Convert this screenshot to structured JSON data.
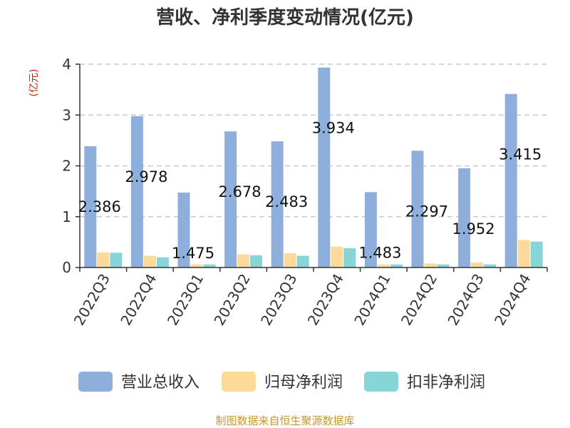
{
  "chart_data": {
    "type": "bar",
    "title": "营收、净利季度变动情况(亿元)",
    "ylabel": "(亿元)",
    "ylim": [
      0,
      4
    ],
    "yticks": [
      0,
      1,
      2,
      3,
      4
    ],
    "grid": true,
    "legend_position": "bottom",
    "categories": [
      "2022Q3",
      "2022Q4",
      "2023Q1",
      "2023Q2",
      "2023Q3",
      "2023Q4",
      "2024Q1",
      "2024Q2",
      "2024Q3",
      "2024Q4"
    ],
    "series": [
      {
        "name": "营业总收入",
        "color": "#8eafdc",
        "values": [
          2.386,
          2.978,
          1.475,
          2.678,
          2.483,
          3.934,
          1.483,
          2.297,
          1.952,
          3.415
        ],
        "labeled": true
      },
      {
        "name": "归母净利润",
        "color": "#fdd99a",
        "values": [
          0.3,
          0.23,
          0.06,
          0.26,
          0.28,
          0.41,
          0.06,
          0.08,
          0.1,
          0.54
        ],
        "labeled": false
      },
      {
        "name": "扣非净利润",
        "color": "#88d5d8",
        "values": [
          0.29,
          0.2,
          0.06,
          0.24,
          0.23,
          0.38,
          0.06,
          0.06,
          0.06,
          0.51
        ],
        "labeled": false
      }
    ],
    "data_labels": [
      "2.386",
      "2.978",
      "1.475",
      "2.678",
      "2.483",
      "3.934",
      "1.483",
      "2.297",
      "1.952",
      "3.415"
    ]
  },
  "footer": {
    "source": "制图数据来自恒生聚源数据库"
  }
}
